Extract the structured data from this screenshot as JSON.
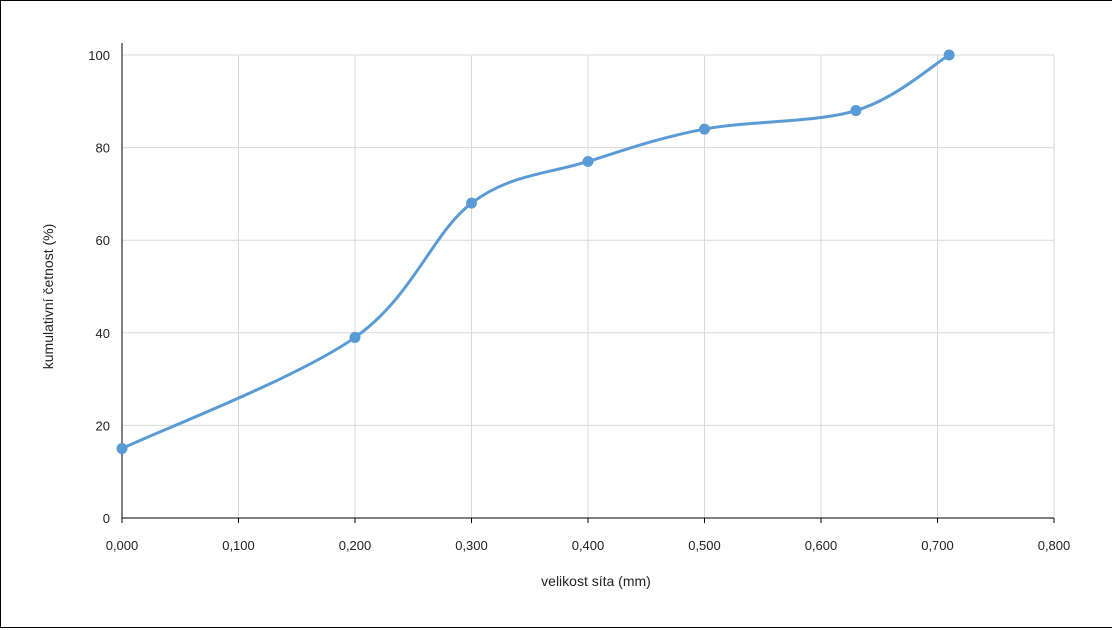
{
  "chart_data": {
    "type": "line",
    "smooth": true,
    "title": "",
    "xlabel": "velikost síta (mm)",
    "ylabel": "kumulativní četnost (%)",
    "xlim": [
      0,
      0.8
    ],
    "ylim": [
      0,
      100
    ],
    "x_ticks": [
      "0,000",
      "0,100",
      "0,200",
      "0,300",
      "0,400",
      "0,500",
      "0,600",
      "0,700",
      "0,800"
    ],
    "y_ticks": [
      "0",
      "20",
      "40",
      "60",
      "80",
      "100"
    ],
    "grid": true,
    "legend": "none",
    "series": [
      {
        "x": [
          0.0,
          0.2,
          0.3,
          0.4,
          0.5,
          0.63,
          0.71
        ],
        "y": [
          15,
          39,
          68,
          77,
          84,
          88,
          100
        ],
        "color": "#5b9bd5"
      }
    ]
  }
}
